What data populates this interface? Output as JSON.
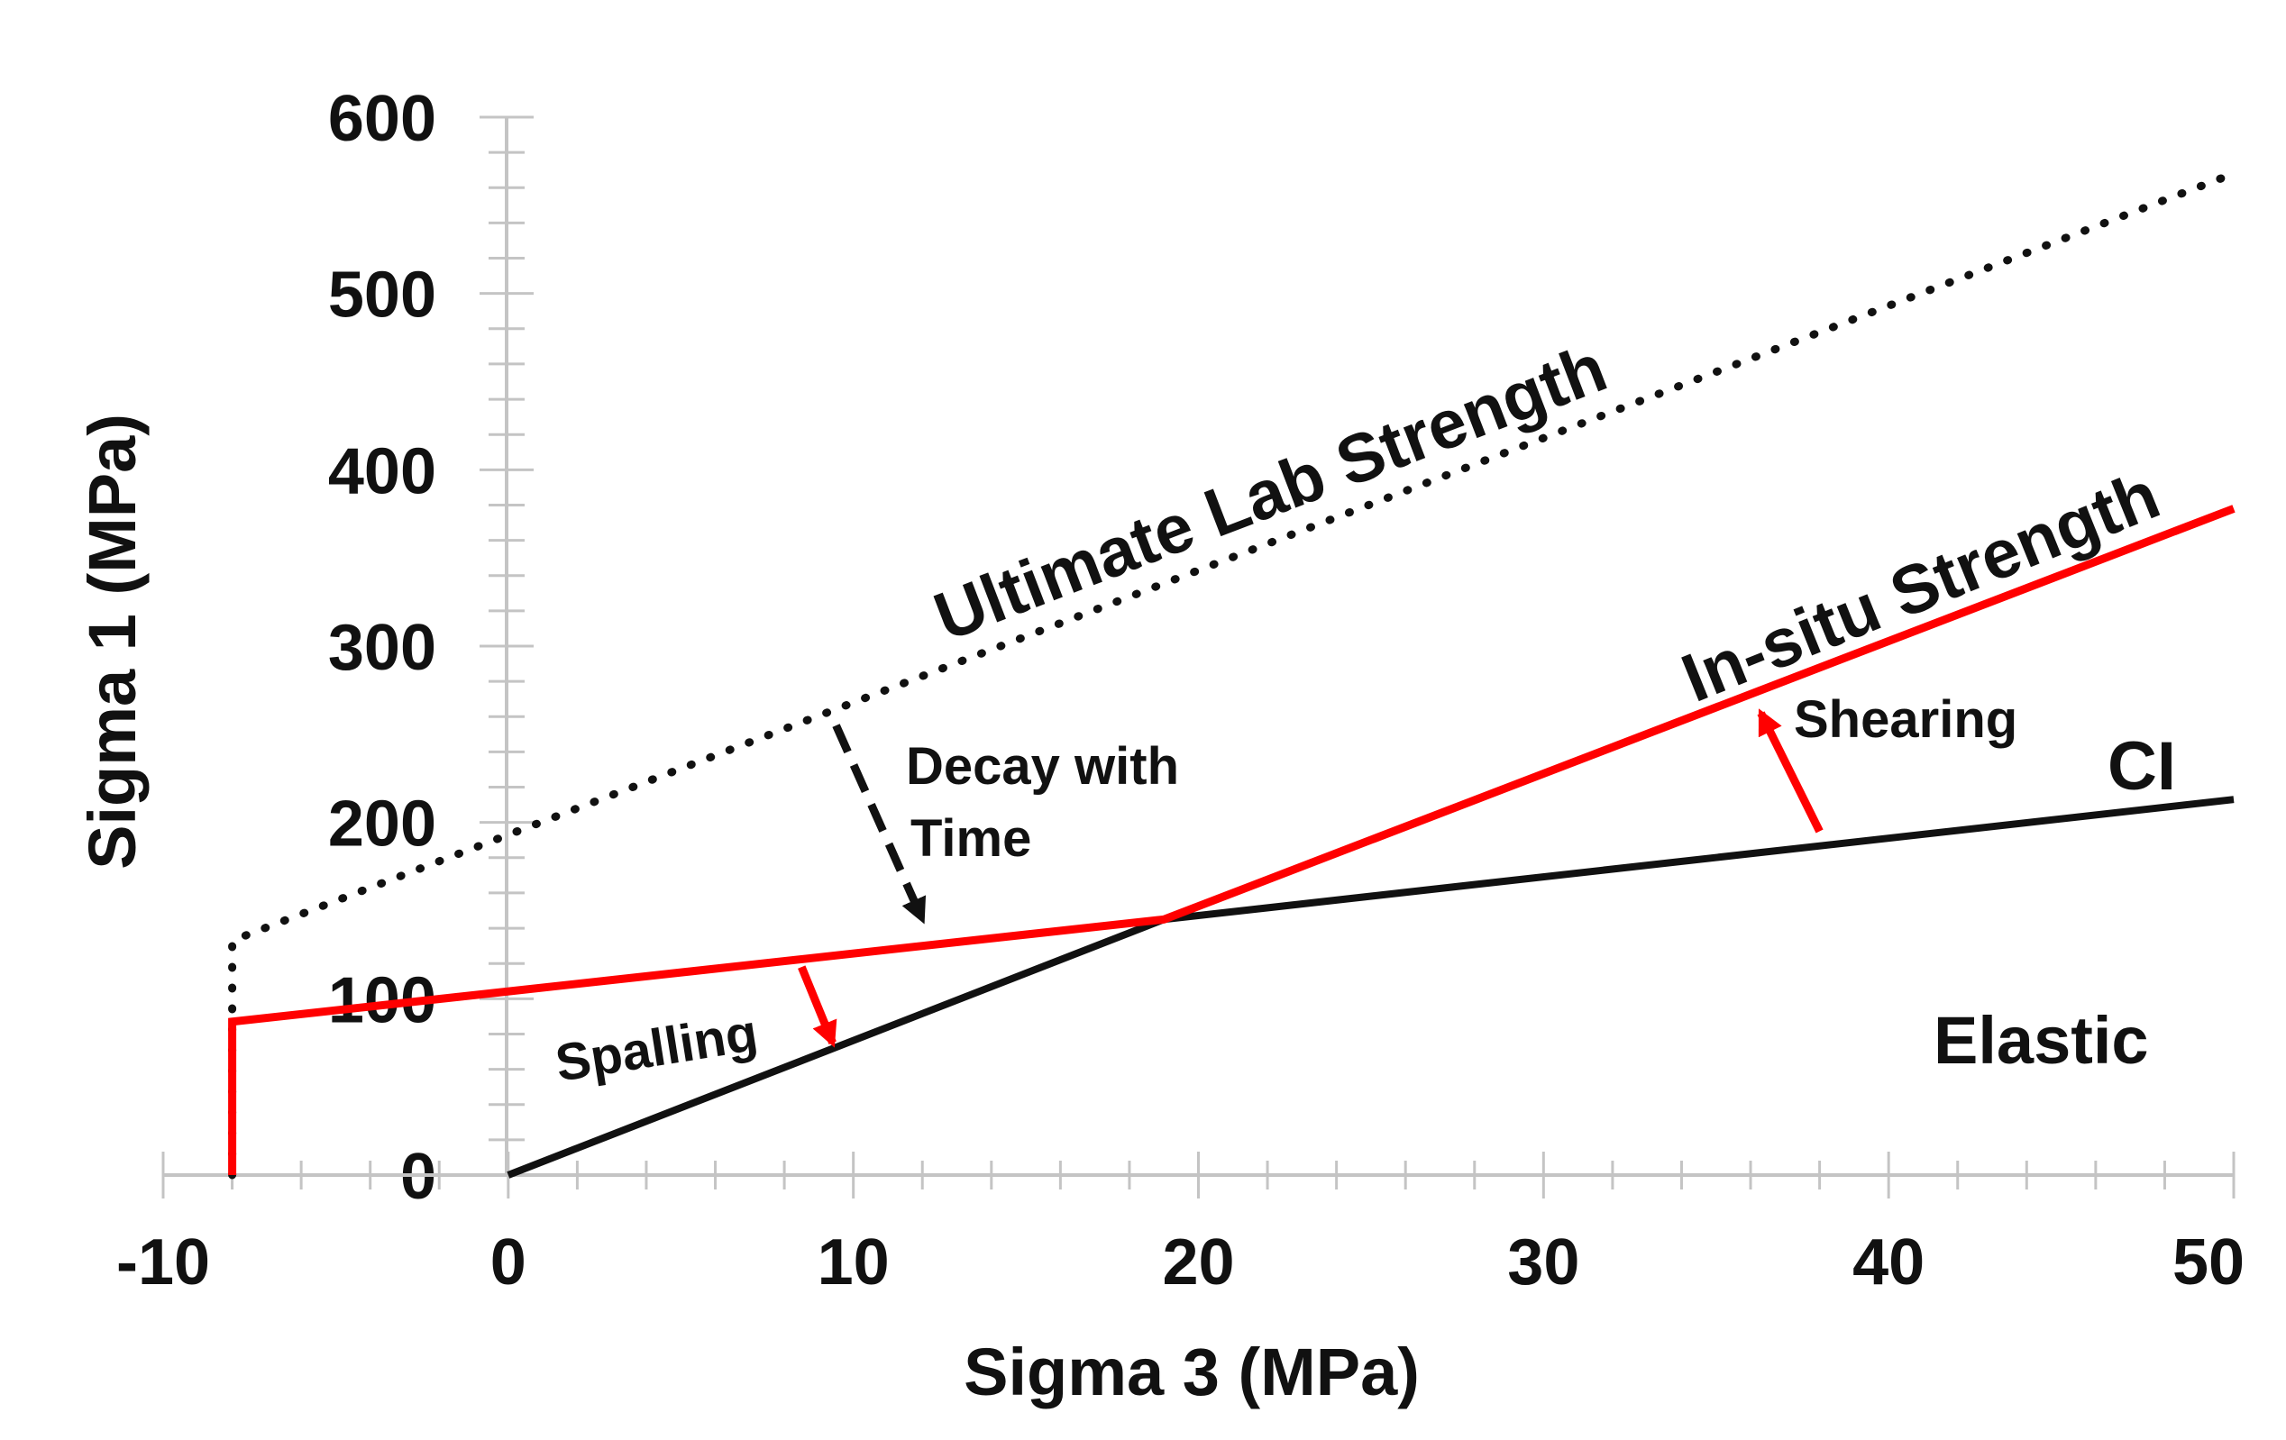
{
  "chart_data": {
    "type": "line",
    "title": "",
    "xlabel": "Sigma 3 (MPa)",
    "ylabel": "Sigma 1 (MPa)",
    "xlim": [
      -10,
      50
    ],
    "ylim": [
      0,
      600
    ],
    "x_ticks": [
      "-10",
      "0",
      "10",
      "20",
      "30",
      "40",
      "50"
    ],
    "y_ticks": [
      "0",
      "100",
      "200",
      "300",
      "400",
      "500",
      "600"
    ],
    "series": [
      {
        "name": "Ultimate Lab Strength",
        "style": "dotted",
        "color": "#111111",
        "points": [
          [
            -8,
            0
          ],
          [
            -8,
            133
          ],
          [
            0,
            193
          ],
          [
            50,
            568
          ]
        ]
      },
      {
        "name": "In-situ Strength",
        "style": "solid",
        "color": "#ff0000",
        "points": [
          [
            -8,
            0
          ],
          [
            -8,
            87
          ],
          [
            19,
            145
          ],
          [
            50,
            378
          ]
        ]
      },
      {
        "name": "CI",
        "style": "solid",
        "color": "#111111",
        "points": [
          [
            0,
            0
          ],
          [
            19,
            145
          ],
          [
            50,
            213
          ]
        ]
      }
    ],
    "labels": {
      "ultimate": "Ultimate Lab Strength",
      "insitu": "In-situ Strength",
      "ci": "CI",
      "elastic": "Elastic",
      "shearing": "Shearing",
      "spalling": "Spalling",
      "decay_line1": "Decay with",
      "decay_line2": "Time"
    },
    "annotations": [
      {
        "name": "decay-arrow",
        "text": "Decay with Time",
        "style": "dashed",
        "color": "#111111",
        "from": [
          9.5,
          255
        ],
        "to": [
          12,
          145
        ]
      },
      {
        "name": "shearing-arrow",
        "text": "Shearing",
        "style": "solid",
        "color": "#ff0000",
        "from": [
          38,
          195
        ],
        "to": [
          36.3,
          262
        ]
      },
      {
        "name": "spalling-arrow",
        "text": "Spalling",
        "style": "solid",
        "color": "#ff0000",
        "from": [
          8.5,
          118
        ],
        "to": [
          9.4,
          75
        ]
      }
    ]
  }
}
